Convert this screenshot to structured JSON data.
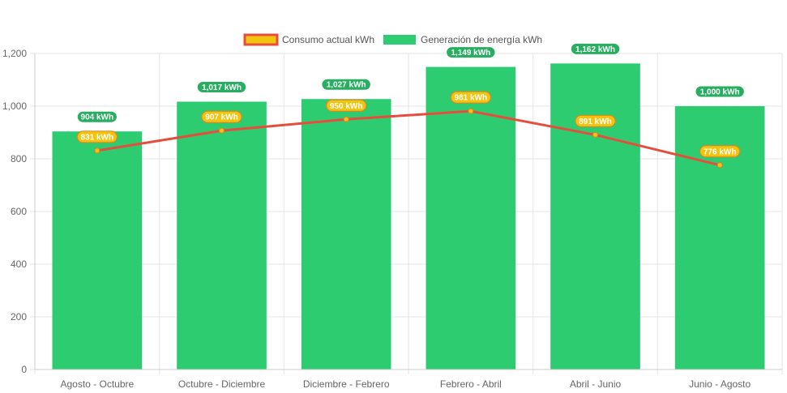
{
  "chart_data": {
    "type": "bar",
    "categories": [
      "Agosto - Octubre",
      "Octubre - Diciembre",
      "Diciembre - Febrero",
      "Febrero - Abril",
      "Abril - Junio",
      "Junio - Agosto"
    ],
    "series": [
      {
        "name": "Generación de energía kWh",
        "type": "bar",
        "color": "#2ecc71",
        "values": [
          904,
          1017,
          1027,
          1149,
          1162,
          1000
        ],
        "labels": [
          "904 kWh",
          "1,017 kWh",
          "1,027 kWh",
          "1,149 kWh",
          "1,162 kWh",
          "1,000 kWh"
        ]
      },
      {
        "name": "Consumo actual kWh",
        "type": "line",
        "color": "#e74c3c",
        "point_color": "#f1c40f",
        "values": [
          831,
          907,
          950,
          981,
          891,
          776
        ],
        "labels": [
          "831 kWh",
          "907 kWh",
          "950 kWh",
          "981 kWh",
          "891 kWh",
          "776 kWh"
        ]
      }
    ],
    "ylim": [
      0,
      1200
    ],
    "yticks": [
      "0",
      "200",
      "400",
      "600",
      "800",
      "1,000",
      "1,200"
    ],
    "ytick_values": [
      0,
      200,
      400,
      600,
      800,
      1000,
      1200
    ],
    "grid": true,
    "legend": "top-center"
  }
}
